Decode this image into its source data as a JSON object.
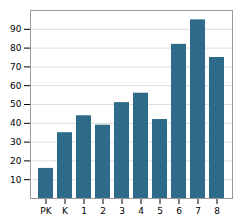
{
  "chart_data": {
    "type": "bar",
    "categories": [
      "PK",
      "K",
      "1",
      "2",
      "3",
      "4",
      "5",
      "6",
      "7",
      "8"
    ],
    "values": [
      16,
      35,
      44,
      39,
      51,
      56,
      42,
      82,
      95,
      75
    ],
    "color": "#2e6b8a",
    "ylim": [
      0,
      100
    ],
    "yticks": [
      10,
      20,
      30,
      40,
      50,
      60,
      70,
      80,
      90
    ],
    "grid": true
  }
}
